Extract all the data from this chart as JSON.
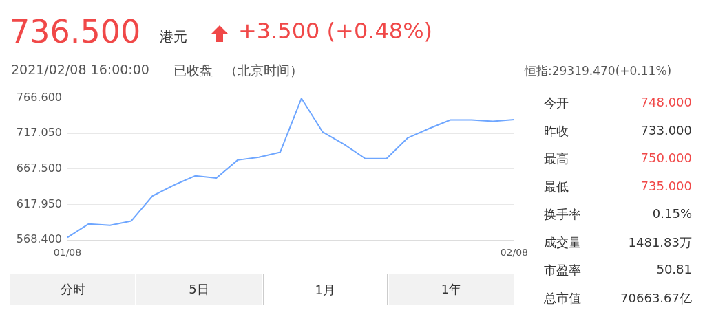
{
  "chart_data": [
    {
      "type": "line",
      "title": "736.500",
      "annotations": [
        "港元",
        "+3.500 (+0.48%)",
        "2021/02/08 16:00:00",
        "已收盘",
        "（北京时间）",
        "恒指:29319.470(+0.11%)",
        "分时",
        "5日",
        "1月",
        "1年"
      ],
      "categories": [
        "01/08",
        null,
        null,
        null,
        null,
        null,
        null,
        null,
        null,
        null,
        null,
        null,
        null,
        null,
        null,
        null,
        null,
        null,
        null,
        null,
        null,
        "02/08"
      ],
      "series": [
        {
          "color": "#6ea6ff",
          "values": [
            572,
            591,
            589,
            595,
            630,
            645,
            658,
            655,
            680,
            684,
            691,
            766,
            719,
            702,
            682,
            682,
            711,
            724,
            736,
            736,
            734,
            736.5
          ]
        }
      ],
      "ylim": [
        568.4,
        766.6
      ],
      "yticks": [
        {
          "value": 568.4,
          "label": "568.400"
        },
        {
          "value": 617.95,
          "label": "617.950"
        },
        {
          "value": 667.5,
          "label": "667.500"
        },
        {
          "value": 717.05,
          "label": "717.050"
        },
        {
          "value": 766.6,
          "label": "766.600"
        }
      ],
      "grid": "y",
      "legend": false,
      "marker": "none",
      "line_style": "solid"
    },
    {
      "type": "other",
      "categories": [
        "今开",
        "昨收",
        "最高",
        "最低",
        "换手率",
        "成交量",
        "市盈率",
        "总市值"
      ],
      "value_labels": [
        "748.000",
        "733.000",
        "750.000",
        "735.000",
        "0.15%",
        "1481.83万",
        "50.81",
        "70663.67亿"
      ],
      "colors": [
        "#f04848",
        "#333333",
        "#f04848",
        "#f04848",
        "#333333",
        "#333333",
        "#333333",
        "#333333"
      ]
    }
  ]
}
